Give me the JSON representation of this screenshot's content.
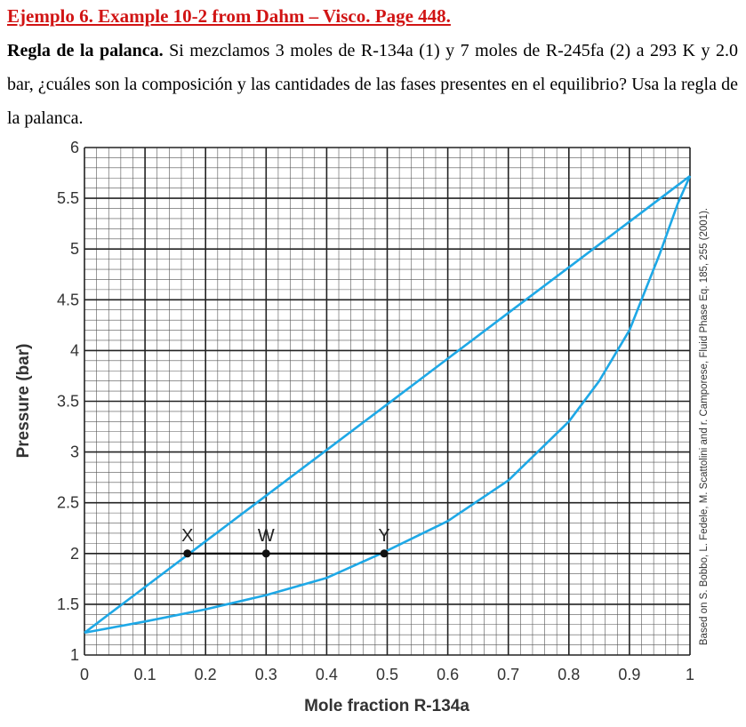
{
  "header": {
    "title": "Ejemplo 6. Example 10-2 from Dahm – Visco. Page 448.",
    "problem_bold": "Regla de la palanca.",
    "problem_text": " Si mezclamos 3 moles de R-134a (1) y 7 moles de R-245fa (2) a 293 K y 2.0 bar, ¿cuáles son la composición y las cantidades de las fases presentes en el equilibrio? Usa la regla de la palanca."
  },
  "chart_data": {
    "type": "line",
    "xlabel": "Mole fraction R-134a",
    "ylabel": "Pressure (bar)",
    "xlim": [
      0,
      1
    ],
    "ylim": [
      1,
      6
    ],
    "x_ticks": [
      "0",
      "0.1",
      "0.2",
      "0.3",
      "0.4",
      "0.5",
      "0.6",
      "0.7",
      "0.8",
      "0.9",
      "1"
    ],
    "y_ticks": [
      "1",
      "1.5",
      "2",
      "2.5",
      "3",
      "3.5",
      "4",
      "4.5",
      "5",
      "5.5",
      "6"
    ],
    "grid": true,
    "series": [
      {
        "color": "#1ea8e6",
        "x": [
          0,
          0.1,
          0.2,
          0.3,
          0.4,
          0.5,
          0.6,
          0.7,
          0.8,
          0.9,
          1.0
        ],
        "y": [
          1.22,
          1.67,
          2.12,
          2.57,
          3.02,
          3.47,
          3.92,
          4.37,
          4.82,
          5.27,
          5.72
        ]
      },
      {
        "color": "#1ea8e6",
        "x": [
          0,
          0.1,
          0.2,
          0.3,
          0.4,
          0.49,
          0.6,
          0.7,
          0.8,
          0.85,
          0.9,
          0.95,
          0.98,
          1.0
        ],
        "y": [
          1.22,
          1.33,
          1.45,
          1.59,
          1.76,
          2.0,
          2.32,
          2.72,
          3.3,
          3.7,
          4.2,
          4.95,
          5.45,
          5.72
        ]
      }
    ],
    "tie_line": {
      "x": [
        0.17,
        0.495
      ],
      "y": 2.0,
      "color": "#000000"
    },
    "points": [
      {
        "label": "X",
        "x": 0.17,
        "y": 2.0
      },
      {
        "label": "W",
        "x": 0.3,
        "y": 2.0
      },
      {
        "label": "Y",
        "x": 0.495,
        "y": 2.0
      }
    ],
    "credit": "Based on S. Bobbo, L. Fedele, M. Scattolini and r. Camporese, Fluid Phase Eq. 185, 255 (2001)."
  }
}
